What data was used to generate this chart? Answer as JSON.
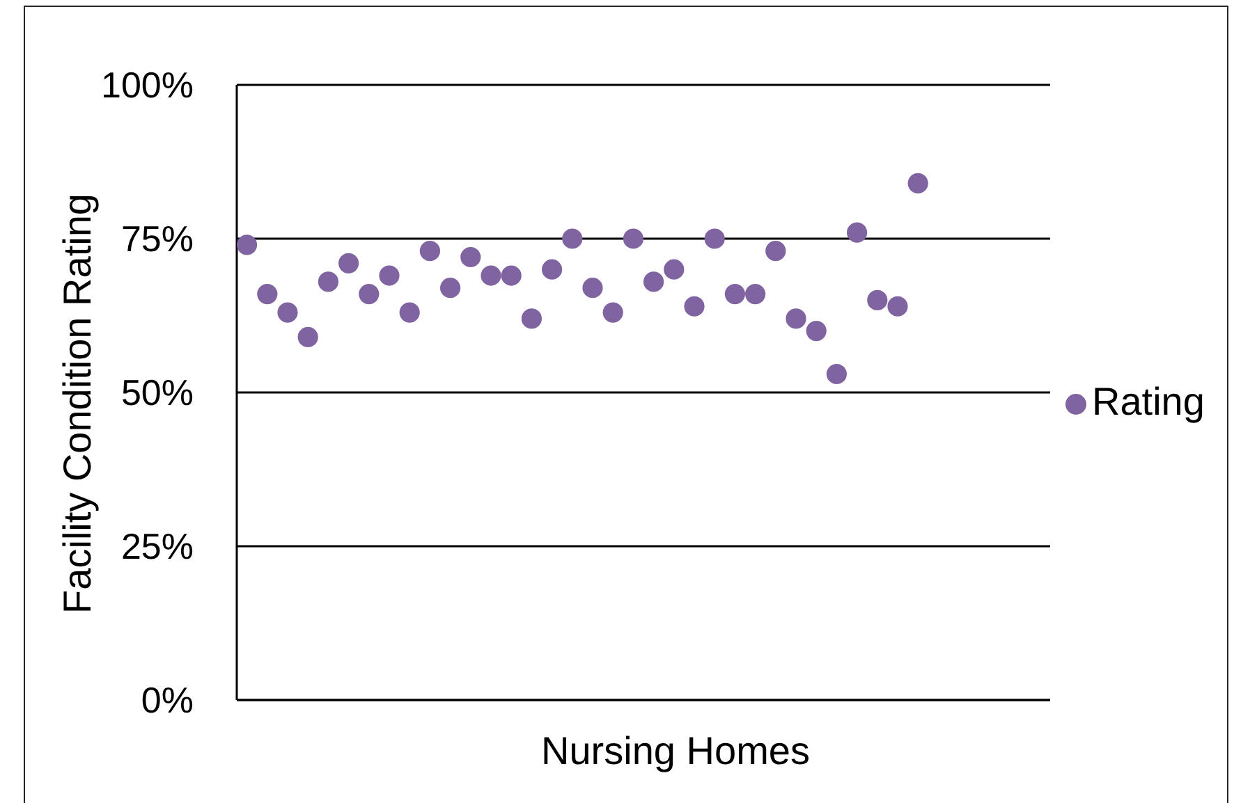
{
  "chart_data": {
    "type": "scatter",
    "xlabel": "Nursing Homes",
    "ylabel": "Facility Condition Rating",
    "categories": [
      null,
      null,
      null,
      null,
      null,
      null,
      null,
      null,
      null,
      null,
      null,
      null,
      null,
      null,
      null,
      null,
      null,
      null,
      null,
      null,
      null,
      null,
      null,
      null,
      null,
      null,
      null,
      null,
      null,
      null,
      null,
      null,
      null,
      null,
      null,
      null,
      null,
      null,
      null,
      null
    ],
    "series": [
      {
        "name": "Rating",
        "color": "#8064a2",
        "values": [
          74,
          66,
          63,
          59,
          68,
          71,
          66,
          69,
          63,
          73,
          67,
          72,
          69,
          69,
          62,
          70,
          75,
          67,
          63,
          75,
          68,
          70,
          64,
          75,
          66,
          66,
          73,
          62,
          60,
          53,
          76,
          65,
          64,
          84,
          null,
          null,
          null,
          null,
          null,
          null
        ]
      }
    ],
    "ylim": [
      0,
      100
    ],
    "yticks": [
      {
        "value": 0,
        "label": "0%"
      },
      {
        "value": 25,
        "label": "25%"
      },
      {
        "value": 50,
        "label": "50%"
      },
      {
        "value": 75,
        "label": "75%"
      },
      {
        "value": 100,
        "label": "100%"
      }
    ],
    "grid": "y",
    "legend": "right",
    "marker": "circle",
    "tick_labels": "y"
  }
}
